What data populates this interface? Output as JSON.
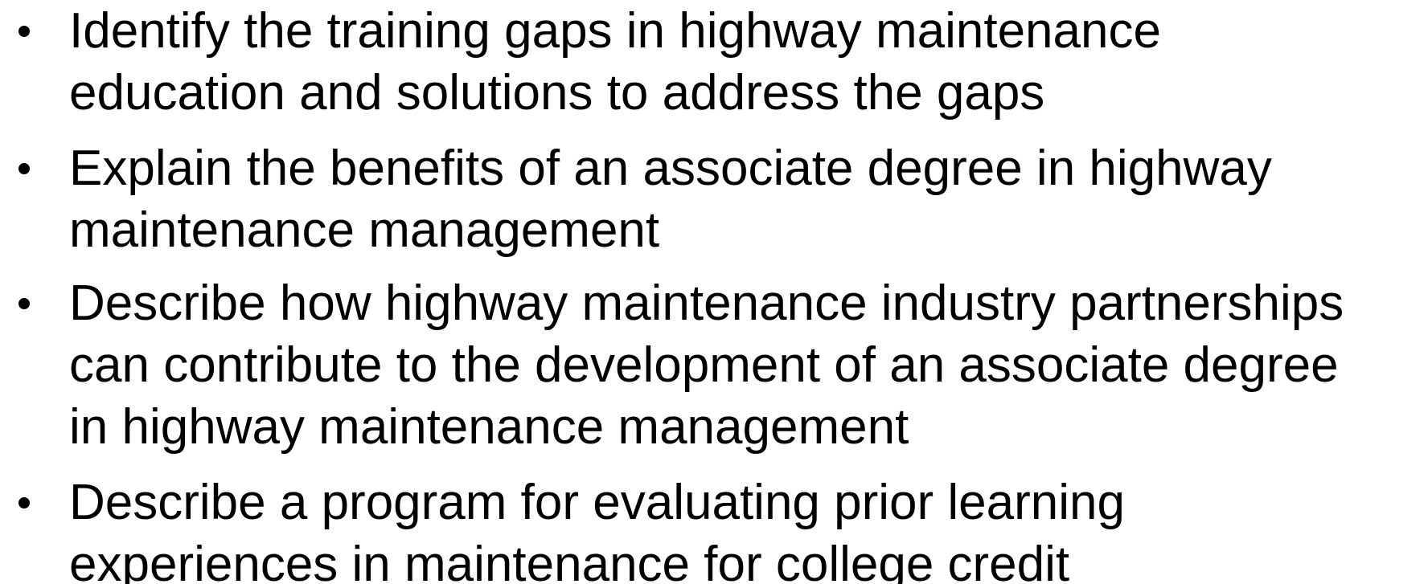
{
  "bullets": [
    {
      "lines": [
        "Identify the training gaps in highway maintenance",
        "education and solutions to address the gaps"
      ]
    },
    {
      "lines": [
        "Explain the benefits of an associate degree in highway",
        "maintenance management"
      ]
    },
    {
      "lines": [
        "Describe how highway maintenance industry partnerships",
        "can contribute to the development of an associate degree",
        "in highway maintenance management"
      ]
    },
    {
      "lines": [
        "Describe a program for evaluating prior learning",
        "experiences in maintenance for college credit"
      ]
    }
  ]
}
